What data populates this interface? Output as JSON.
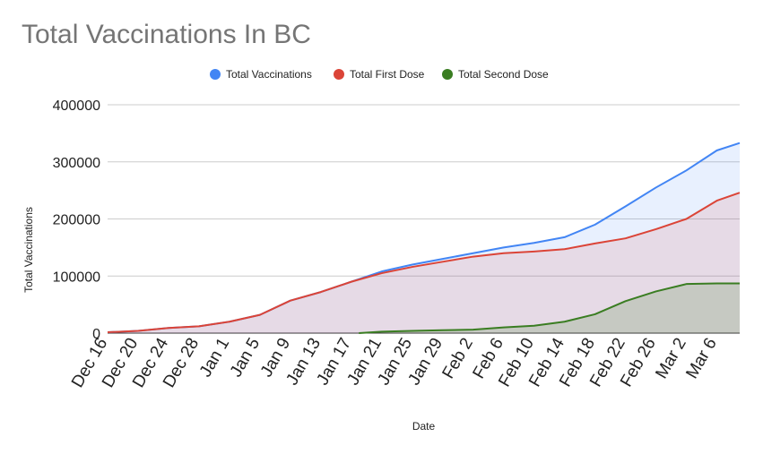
{
  "chart_data": {
    "type": "area",
    "title": "Total Vaccinations In BC",
    "xlabel": "Date",
    "ylabel": "Total Vaccinations",
    "ylim": [
      0,
      400000
    ],
    "yticks": [
      "0",
      "100000",
      "200000",
      "300000",
      "400000"
    ],
    "xticks": [
      "Dec 16",
      "Dec 20",
      "Dec 24",
      "Dec 28",
      "Jan 1",
      "Jan 5",
      "Jan 9",
      "Jan 13",
      "Jan 17",
      "Jan 21",
      "Jan 25",
      "Jan 29",
      "Feb 2",
      "Feb 6",
      "Feb 10",
      "Feb 14",
      "Feb 18",
      "Feb 22",
      "Feb 26",
      "Mar 2",
      "Mar 6"
    ],
    "grid": true,
    "legend_position": "top",
    "colors": {
      "total": "#4285f4",
      "first": "#db4437",
      "second": "#3a7d22"
    },
    "series": [
      {
        "name": "Total Vaccinations",
        "points": [
          [
            "Dec 16",
            1500
          ],
          [
            "Dec 20",
            4000
          ],
          [
            "Dec 24",
            9000
          ],
          [
            "Dec 28",
            12000
          ],
          [
            "Jan 1",
            20000
          ],
          [
            "Jan 5",
            32000
          ],
          [
            "Jan 9",
            57000
          ],
          [
            "Jan 13",
            72000
          ],
          [
            "Jan 17",
            90000
          ],
          [
            "Jan 21",
            108000
          ],
          [
            "Jan 25",
            120000
          ],
          [
            "Jan 29",
            130000
          ],
          [
            "Feb 2",
            140000
          ],
          [
            "Feb 6",
            150000
          ],
          [
            "Feb 10",
            158000
          ],
          [
            "Feb 14",
            168000
          ],
          [
            "Feb 18",
            190000
          ],
          [
            "Feb 22",
            222000
          ],
          [
            "Feb 26",
            255000
          ],
          [
            "Mar 2",
            285000
          ],
          [
            "Mar 6",
            320000
          ],
          [
            "Mar 9",
            333000
          ]
        ]
      },
      {
        "name": "Total First Dose",
        "points": [
          [
            "Dec 16",
            1500
          ],
          [
            "Dec 20",
            4000
          ],
          [
            "Dec 24",
            9000
          ],
          [
            "Dec 28",
            12000
          ],
          [
            "Jan 1",
            20000
          ],
          [
            "Jan 5",
            32000
          ],
          [
            "Jan 9",
            57000
          ],
          [
            "Jan 13",
            72000
          ],
          [
            "Jan 17",
            90000
          ],
          [
            "Jan 21",
            105000
          ],
          [
            "Jan 25",
            116000
          ],
          [
            "Jan 29",
            125000
          ],
          [
            "Feb 2",
            134000
          ],
          [
            "Feb 6",
            140000
          ],
          [
            "Feb 10",
            143000
          ],
          [
            "Feb 14",
            147000
          ],
          [
            "Feb 18",
            157000
          ],
          [
            "Feb 22",
            166000
          ],
          [
            "Feb 26",
            182000
          ],
          [
            "Mar 2",
            200000
          ],
          [
            "Mar 6",
            232000
          ],
          [
            "Mar 9",
            246000
          ]
        ]
      },
      {
        "name": "Total Second Dose",
        "points": [
          [
            "Jan 18",
            0
          ],
          [
            "Jan 21",
            2500
          ],
          [
            "Jan 25",
            4000
          ],
          [
            "Jan 29",
            5000
          ],
          [
            "Feb 2",
            6000
          ],
          [
            "Feb 6",
            10000
          ],
          [
            "Feb 10",
            13000
          ],
          [
            "Feb 14",
            20000
          ],
          [
            "Feb 18",
            33000
          ],
          [
            "Feb 22",
            56000
          ],
          [
            "Feb 26",
            73000
          ],
          [
            "Mar 2",
            86000
          ],
          [
            "Mar 6",
            87000
          ],
          [
            "Mar 9",
            87000
          ]
        ]
      }
    ]
  }
}
